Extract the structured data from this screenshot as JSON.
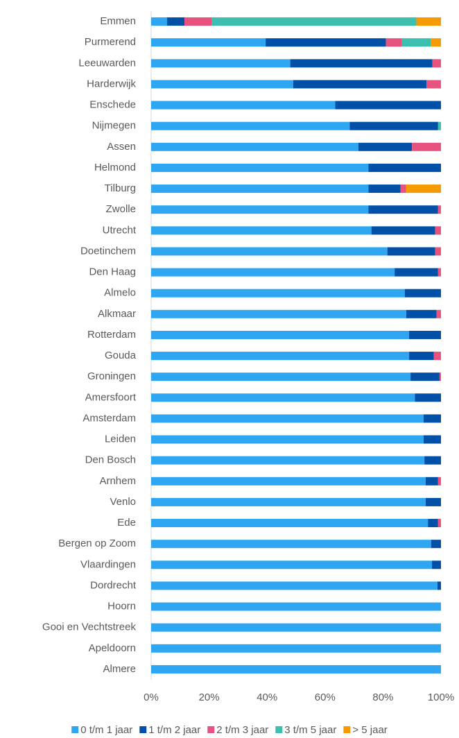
{
  "chart_data": {
    "type": "stacked_barh",
    "categories": [
      "Emmen",
      "Purmerend",
      "Leeuwarden",
      "Harderwijk",
      "Enschede",
      "Nijmegen",
      "Assen",
      "Helmond",
      "Tilburg",
      "Zwolle",
      "Utrecht",
      "Doetinchem",
      "Den Haag",
      "Almelo",
      "Alkmaar",
      "Rotterdam",
      "Gouda",
      "Groningen",
      "Amersfoort",
      "Amsterdam",
      "Leiden",
      "Den Bosch",
      "Arnhem",
      "Venlo",
      "Ede",
      "Bergen op Zoom",
      "Vlaardingen",
      "Dordrecht",
      "Hoorn",
      "Gooi en Vechtstreek",
      "Apeldoorn",
      "Almere"
    ],
    "series": [
      {
        "name": "0 t/m 1 jaar",
        "color": "#2ea6f2",
        "values": [
          5.5,
          39.5,
          48,
          49,
          63.5,
          68.5,
          71.5,
          75,
          75,
          75,
          76,
          81.5,
          84,
          87.5,
          88,
          89,
          89,
          89.5,
          91,
          94,
          94,
          94.3,
          94.7,
          94.7,
          95.5,
          96.6,
          96.9,
          98.8,
          100,
          100,
          100,
          100
        ]
      },
      {
        "name": "1 t/m 2 jaar",
        "color": "#0050a8",
        "values": [
          6,
          41.5,
          49,
          46,
          36.5,
          30.5,
          18.5,
          25,
          11,
          24,
          22,
          16.5,
          15,
          12.5,
          10.5,
          11,
          8.5,
          10,
          9,
          6,
          6,
          5.7,
          4.3,
          5.3,
          3.5,
          3.4,
          3.1,
          1.2,
          0,
          0,
          0,
          0
        ]
      },
      {
        "name": "2 t/m 3 jaar",
        "color": "#e8527f",
        "values": [
          9.5,
          5.5,
          3,
          5,
          0,
          0,
          10,
          0,
          2,
          1,
          2,
          2,
          1,
          0,
          1.5,
          0,
          2.5,
          0.5,
          0,
          0,
          0,
          0,
          1,
          0,
          1,
          0,
          0,
          0,
          0,
          0,
          0,
          0
        ]
      },
      {
        "name": "3 t/m 5 jaar",
        "color": "#3dbfb0",
        "values": [
          70.5,
          10,
          0,
          0,
          0,
          1,
          0,
          0,
          0,
          0,
          0,
          0,
          0,
          0,
          0,
          0,
          0,
          0,
          0,
          0,
          0,
          0,
          0,
          0,
          0,
          0,
          0,
          0,
          0,
          0,
          0,
          0
        ]
      },
      {
        "name": "> 5 jaar",
        "color": "#f59a00",
        "values": [
          8.5,
          3.5,
          0,
          0,
          0,
          0,
          0,
          0,
          12,
          0,
          0,
          0,
          0,
          0,
          0,
          0,
          0,
          0,
          0,
          0,
          0,
          0,
          0,
          0,
          0,
          0,
          0,
          0,
          0,
          0,
          0,
          0
        ]
      }
    ],
    "xlim": [
      0,
      100
    ],
    "xticks": [
      {
        "value": 0,
        "label": "0%"
      },
      {
        "value": 20,
        "label": "20%"
      },
      {
        "value": 40,
        "label": "40%"
      },
      {
        "value": 60,
        "label": "60%"
      },
      {
        "value": 80,
        "label": "80%"
      },
      {
        "value": 100,
        "label": "100%"
      }
    ],
    "legend": "bottom"
  }
}
